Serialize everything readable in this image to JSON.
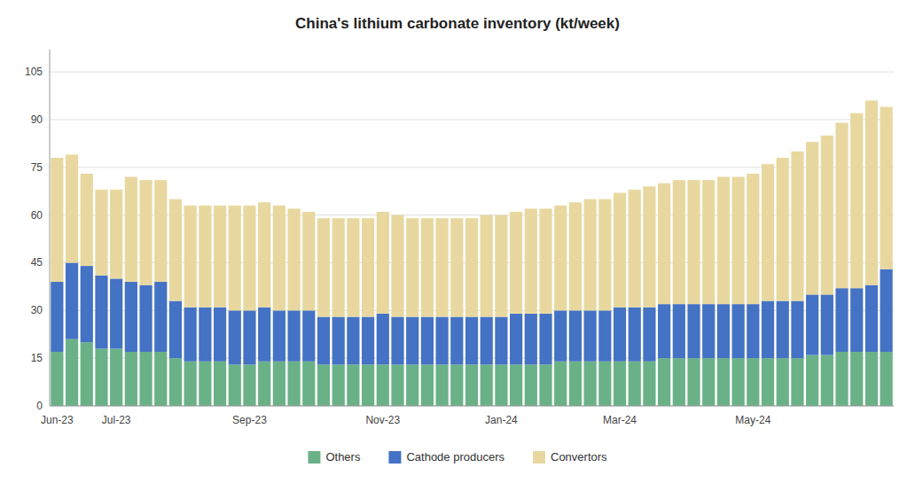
{
  "chart_data": {
    "type": "bar",
    "title": "China's lithium carbonate inventory (kt/week)",
    "stacked": true,
    "grid": true,
    "legend": "bottom",
    "ylim": [
      0,
      112
    ],
    "yticks": [
      0,
      15,
      30,
      45,
      60,
      75,
      90,
      105
    ],
    "categories": [
      "Jun-23",
      null,
      null,
      null,
      "Jul-23",
      null,
      null,
      null,
      null,
      null,
      null,
      null,
      null,
      "Sep-23",
      null,
      null,
      null,
      null,
      null,
      null,
      null,
      null,
      "Nov-23",
      null,
      null,
      null,
      null,
      null,
      null,
      null,
      "Jan-24",
      null,
      null,
      null,
      null,
      null,
      null,
      null,
      "Mar-24",
      null,
      null,
      null,
      null,
      null,
      null,
      null,
      null,
      "May-24",
      null,
      null,
      null,
      null,
      null,
      null,
      null,
      null,
      null
    ],
    "series": [
      {
        "name": "Others",
        "color": "#6ab187",
        "values": [
          17,
          21,
          20,
          18,
          18,
          17,
          17,
          17,
          15,
          14,
          14,
          14,
          13,
          13,
          14,
          14,
          14,
          14,
          13,
          13,
          13,
          13,
          13,
          13,
          13,
          13,
          13,
          13,
          13,
          13,
          13,
          13,
          13,
          13,
          14,
          14,
          14,
          14,
          14,
          14,
          14,
          15,
          15,
          15,
          15,
          15,
          15,
          15,
          15,
          15,
          15,
          16,
          16,
          17,
          17,
          17,
          17
        ]
      },
      {
        "name": "Cathode producers",
        "color": "#4472c4",
        "values": [
          22,
          24,
          24,
          23,
          22,
          22,
          21,
          22,
          18,
          17,
          17,
          17,
          17,
          17,
          17,
          16,
          16,
          16,
          15,
          15,
          15,
          15,
          16,
          15,
          15,
          15,
          15,
          15,
          15,
          15,
          15,
          16,
          16,
          16,
          16,
          16,
          16,
          16,
          17,
          17,
          17,
          17,
          17,
          17,
          17,
          17,
          17,
          17,
          18,
          18,
          18,
          19,
          19,
          20,
          20,
          21,
          26
        ]
      },
      {
        "name": "Convertors",
        "color": "#e8d8a0",
        "values": [
          39,
          34,
          29,
          27,
          28,
          33,
          33,
          32,
          32,
          32,
          32,
          32,
          33,
          33,
          33,
          33,
          32,
          31,
          31,
          31,
          31,
          31,
          32,
          32,
          31,
          31,
          31,
          31,
          31,
          32,
          32,
          32,
          33,
          33,
          33,
          34,
          35,
          35,
          36,
          37,
          38,
          38,
          39,
          39,
          39,
          40,
          40,
          41,
          43,
          45,
          47,
          48,
          50,
          52,
          55,
          58,
          51
        ]
      }
    ]
  }
}
